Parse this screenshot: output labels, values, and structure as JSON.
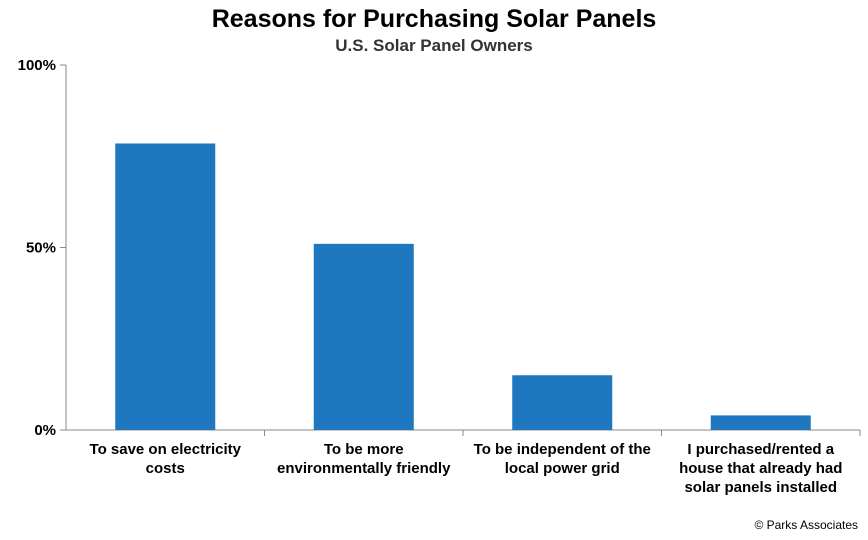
{
  "chart_data": {
    "type": "bar",
    "title": "Reasons for Purchasing Solar Panels",
    "subtitle": "U.S. Solar Panel Owners",
    "categories": [
      [
        "To save on electricity",
        "costs"
      ],
      [
        "To be more",
        "environmentally friendly"
      ],
      [
        "To be independent of the",
        "local power grid"
      ],
      [
        "I purchased/rented a",
        "house that already had",
        "solar panels installed"
      ]
    ],
    "values": [
      78.5,
      51,
      15,
      4
    ],
    "ylim": [
      0,
      100
    ],
    "yticks": [
      0,
      50,
      100
    ],
    "ytick_labels": [
      "0%",
      "50%",
      "100%"
    ],
    "bar_color": "#1f77bf",
    "grid": false
  },
  "footer": {
    "copyright": "© Parks Associates"
  }
}
